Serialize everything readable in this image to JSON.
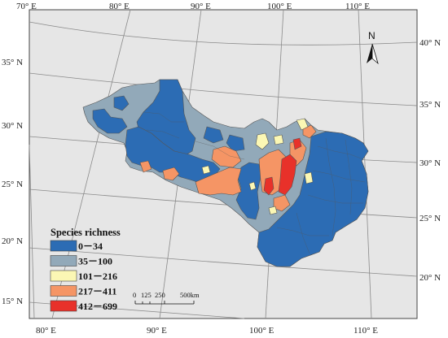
{
  "title": "",
  "graticule": {
    "top_lon_labels": [
      "70° E",
      "80° E",
      "90° E",
      "100° E",
      "110° E"
    ],
    "bottom_lon_labels": [
      "80° E",
      "90° E",
      "100° E",
      "110° E"
    ],
    "left_lat_labels": [
      "35° N",
      "30° N",
      "25° N",
      "20° N",
      "15° N"
    ],
    "right_lat_labels": [
      "40° N",
      "35° N",
      "30° N",
      "25° N",
      "20° N"
    ]
  },
  "north_arrow": {
    "label": "N"
  },
  "legend": {
    "title": "Species richness",
    "classes": [
      {
        "label": "0－34",
        "color": "#2c6cb4"
      },
      {
        "label": "35－100",
        "color": "#92a9b9"
      },
      {
        "label": "101－216",
        "color": "#fbf7b4"
      },
      {
        "label": "217－411",
        "color": "#f59565"
      },
      {
        "label": "412－699",
        "color": "#e8312a"
      }
    ]
  },
  "scale_bar": {
    "labels": [
      "0",
      "125",
      "250",
      "500km"
    ]
  },
  "colors": {
    "land": "#e6e6e6",
    "graticule": "#8a8a8a",
    "boundary": "#555555"
  }
}
